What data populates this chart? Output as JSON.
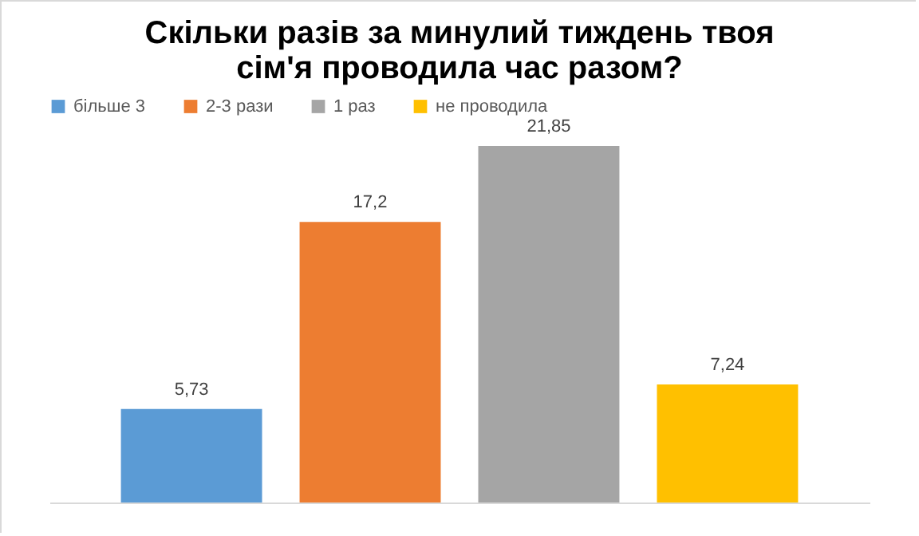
{
  "chart_data": {
    "type": "bar",
    "title": "Скільки разів за минулий тиждень твоя\nсім'я проводила час разом?",
    "categories": [
      null
    ],
    "series": [
      {
        "name": "більше 3",
        "color": "#5b9bd5",
        "values": [
          5.73
        ],
        "value_labels": [
          "5,73"
        ]
      },
      {
        "name": "2-3 рази",
        "color": "#ed7d31",
        "values": [
          17.2
        ],
        "value_labels": [
          "17,2"
        ]
      },
      {
        "name": "1 раз",
        "color": "#a5a5a5",
        "values": [
          21.85
        ],
        "value_labels": [
          "21,85"
        ]
      },
      {
        "name": "не проводила",
        "color": "#ffc000",
        "values": [
          7.24
        ],
        "value_labels": [
          "7,24"
        ]
      }
    ],
    "legend": "top",
    "grid": false
  }
}
